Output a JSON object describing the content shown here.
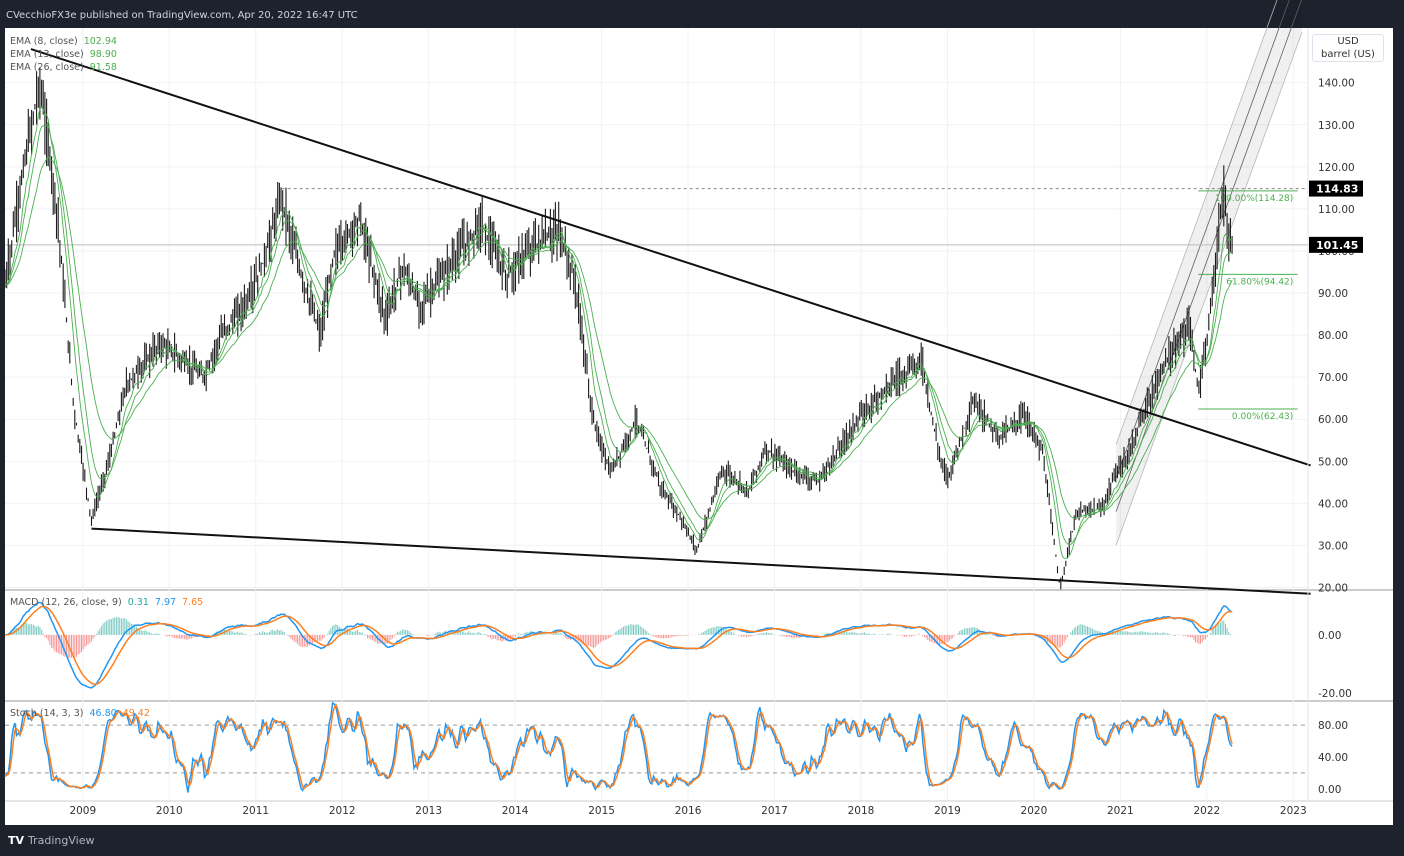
{
  "header": {
    "title": "CVecchioFX3e published on TradingView.com, Apr 20, 2022 16:47 UTC"
  },
  "footer": {
    "brand": "TradingView"
  },
  "colors": {
    "ema_line": "#4caf50",
    "price": "#1a1a1a",
    "macd": "#2196f3",
    "signal": "#ff7f1f",
    "hist_up": "#26a69a",
    "hist_down": "#ef5350",
    "fib": "#4caf50",
    "last_price_bg": "#000000",
    "frame": "#1e222d"
  },
  "chart_data": [
    {
      "type": "line",
      "pane": "price",
      "unit_labels": [
        "USD",
        "barrel (US)"
      ],
      "legend": [
        {
          "label": "EMA (8, close)",
          "value": "102.94"
        },
        {
          "label": "EMA (13, close)",
          "value": "98.90"
        },
        {
          "label": "EMA (26, close)",
          "value": "91.58"
        }
      ],
      "xlim": [
        2008.1,
        2023.17
      ],
      "ylim": [
        19.4,
        153
      ],
      "x_ticks": [
        "2009",
        "2010",
        "2011",
        "2012",
        "2013",
        "2014",
        "2015",
        "2016",
        "2017",
        "2018",
        "2019",
        "2020",
        "2021",
        "2022",
        "2023"
      ],
      "y_ticks": [
        "20.00",
        "30.00",
        "40.00",
        "50.00",
        "60.00",
        "70.00",
        "80.00",
        "90.00",
        "100.00",
        "110.00",
        "120.00",
        "130.00",
        "140.00"
      ],
      "price_labels": [
        "114.83",
        "101.45"
      ],
      "horizontal_lines": [
        114.83,
        101.45
      ],
      "fib_levels": [
        {
          "label": "100.00%(114.28)",
          "value": 114.28
        },
        {
          "label": "61.80%(94.42)",
          "value": 94.42
        },
        {
          "label": "0.00%(62.43)",
          "value": 62.43
        }
      ],
      "trendlines": [
        {
          "from": [
            2008.4,
            148
          ],
          "to": [
            2023.2,
            49
          ]
        },
        {
          "from": [
            2009.1,
            34
          ],
          "to": [
            2023.2,
            18.5
          ]
        }
      ],
      "series": [
        {
          "x": [
            2008.1,
            2008.3,
            2008.5,
            2008.7,
            2008.9,
            2009.1,
            2009.3,
            2009.5,
            2009.9,
            2010.4,
            2010.6,
            2010.9,
            2011.1,
            2011.3,
            2011.5,
            2011.75,
            2011.9,
            2012.2,
            2012.5,
            2012.7,
            2012.9,
            2013.2,
            2013.6,
            2013.9,
            2014.2,
            2014.5,
            2014.7,
            2014.9,
            2015.1,
            2015.4,
            2015.7,
            2015.9,
            2016.1,
            2016.4,
            2016.7,
            2016.9,
            2017.2,
            2017.5,
            2017.9,
            2018.3,
            2018.7,
            2018.9,
            2019.0,
            2019.3,
            2019.6,
            2019.9,
            2020.1,
            2020.3,
            2020.5,
            2020.8,
            2020.9,
            2021.1,
            2021.3,
            2021.5,
            2021.8,
            2021.9,
            2022.0,
            2022.15,
            2022.2,
            2022.25,
            2022.3
          ],
          "values": [
            92,
            118,
            140,
            110,
            62,
            36,
            50,
            68,
            78,
            70,
            80,
            88,
            98,
            113,
            96,
            80,
            99,
            108,
            84,
            96,
            87,
            95,
            107,
            94,
            101,
            105,
            92,
            60,
            47,
            60,
            43,
            37,
            29,
            48,
            43,
            53,
            48,
            45,
            58,
            68,
            74,
            52,
            46,
            64,
            56,
            61,
            52,
            20,
            38,
            39,
            45,
            52,
            63,
            73,
            82,
            67,
            77,
            108,
            114,
            100,
            102
          ]
        }
      ],
      "macd": {
        "legend": "MACD (12, 26, close, 9)",
        "values": [
          "0.31",
          "7.97",
          "7.65"
        ],
        "y_ticks": [
          "0.00",
          "-20.00"
        ],
        "ylim": [
          -22.4,
          15.4
        ]
      },
      "stoch": {
        "legend": "Stoch (14, 3, 3)",
        "values": [
          "46.80",
          "49.42"
        ],
        "y_ticks": [
          "80.00",
          "40.00",
          "0.00"
        ],
        "ylim": [
          -14,
          109
        ],
        "bands": [
          80,
          20
        ]
      }
    }
  ]
}
